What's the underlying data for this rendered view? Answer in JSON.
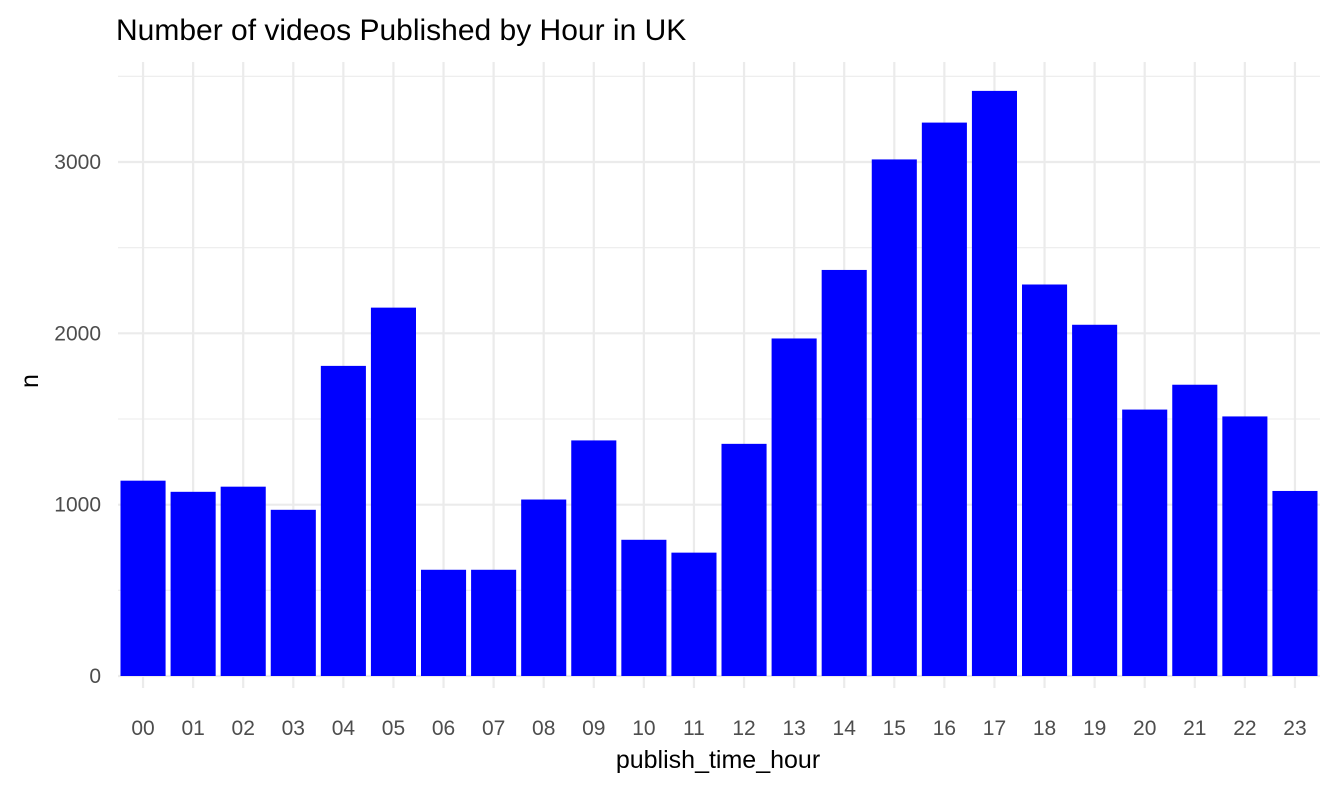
{
  "chart_data": {
    "type": "bar",
    "title": "Number of videos Published by Hour in UK",
    "xlabel": "publish_time_hour",
    "ylabel": "n",
    "categories": [
      "00",
      "01",
      "02",
      "03",
      "04",
      "05",
      "06",
      "07",
      "08",
      "09",
      "10",
      "11",
      "12",
      "13",
      "14",
      "15",
      "16",
      "17",
      "18",
      "19",
      "20",
      "21",
      "22",
      "23"
    ],
    "values": [
      1140,
      1075,
      1105,
      970,
      1810,
      2150,
      620,
      620,
      1030,
      1375,
      795,
      720,
      1355,
      1970,
      2370,
      3015,
      3230,
      3415,
      2285,
      2050,
      1555,
      1700,
      1515,
      1080
    ],
    "ylim": [
      0,
      3500
    ],
    "yticks": [
      0,
      1000,
      2000,
      3000
    ],
    "ytick_labels": [
      "0",
      "1000",
      "2000",
      "3000"
    ],
    "bar_color": "#0000ff",
    "grid": true,
    "legend": "none"
  }
}
